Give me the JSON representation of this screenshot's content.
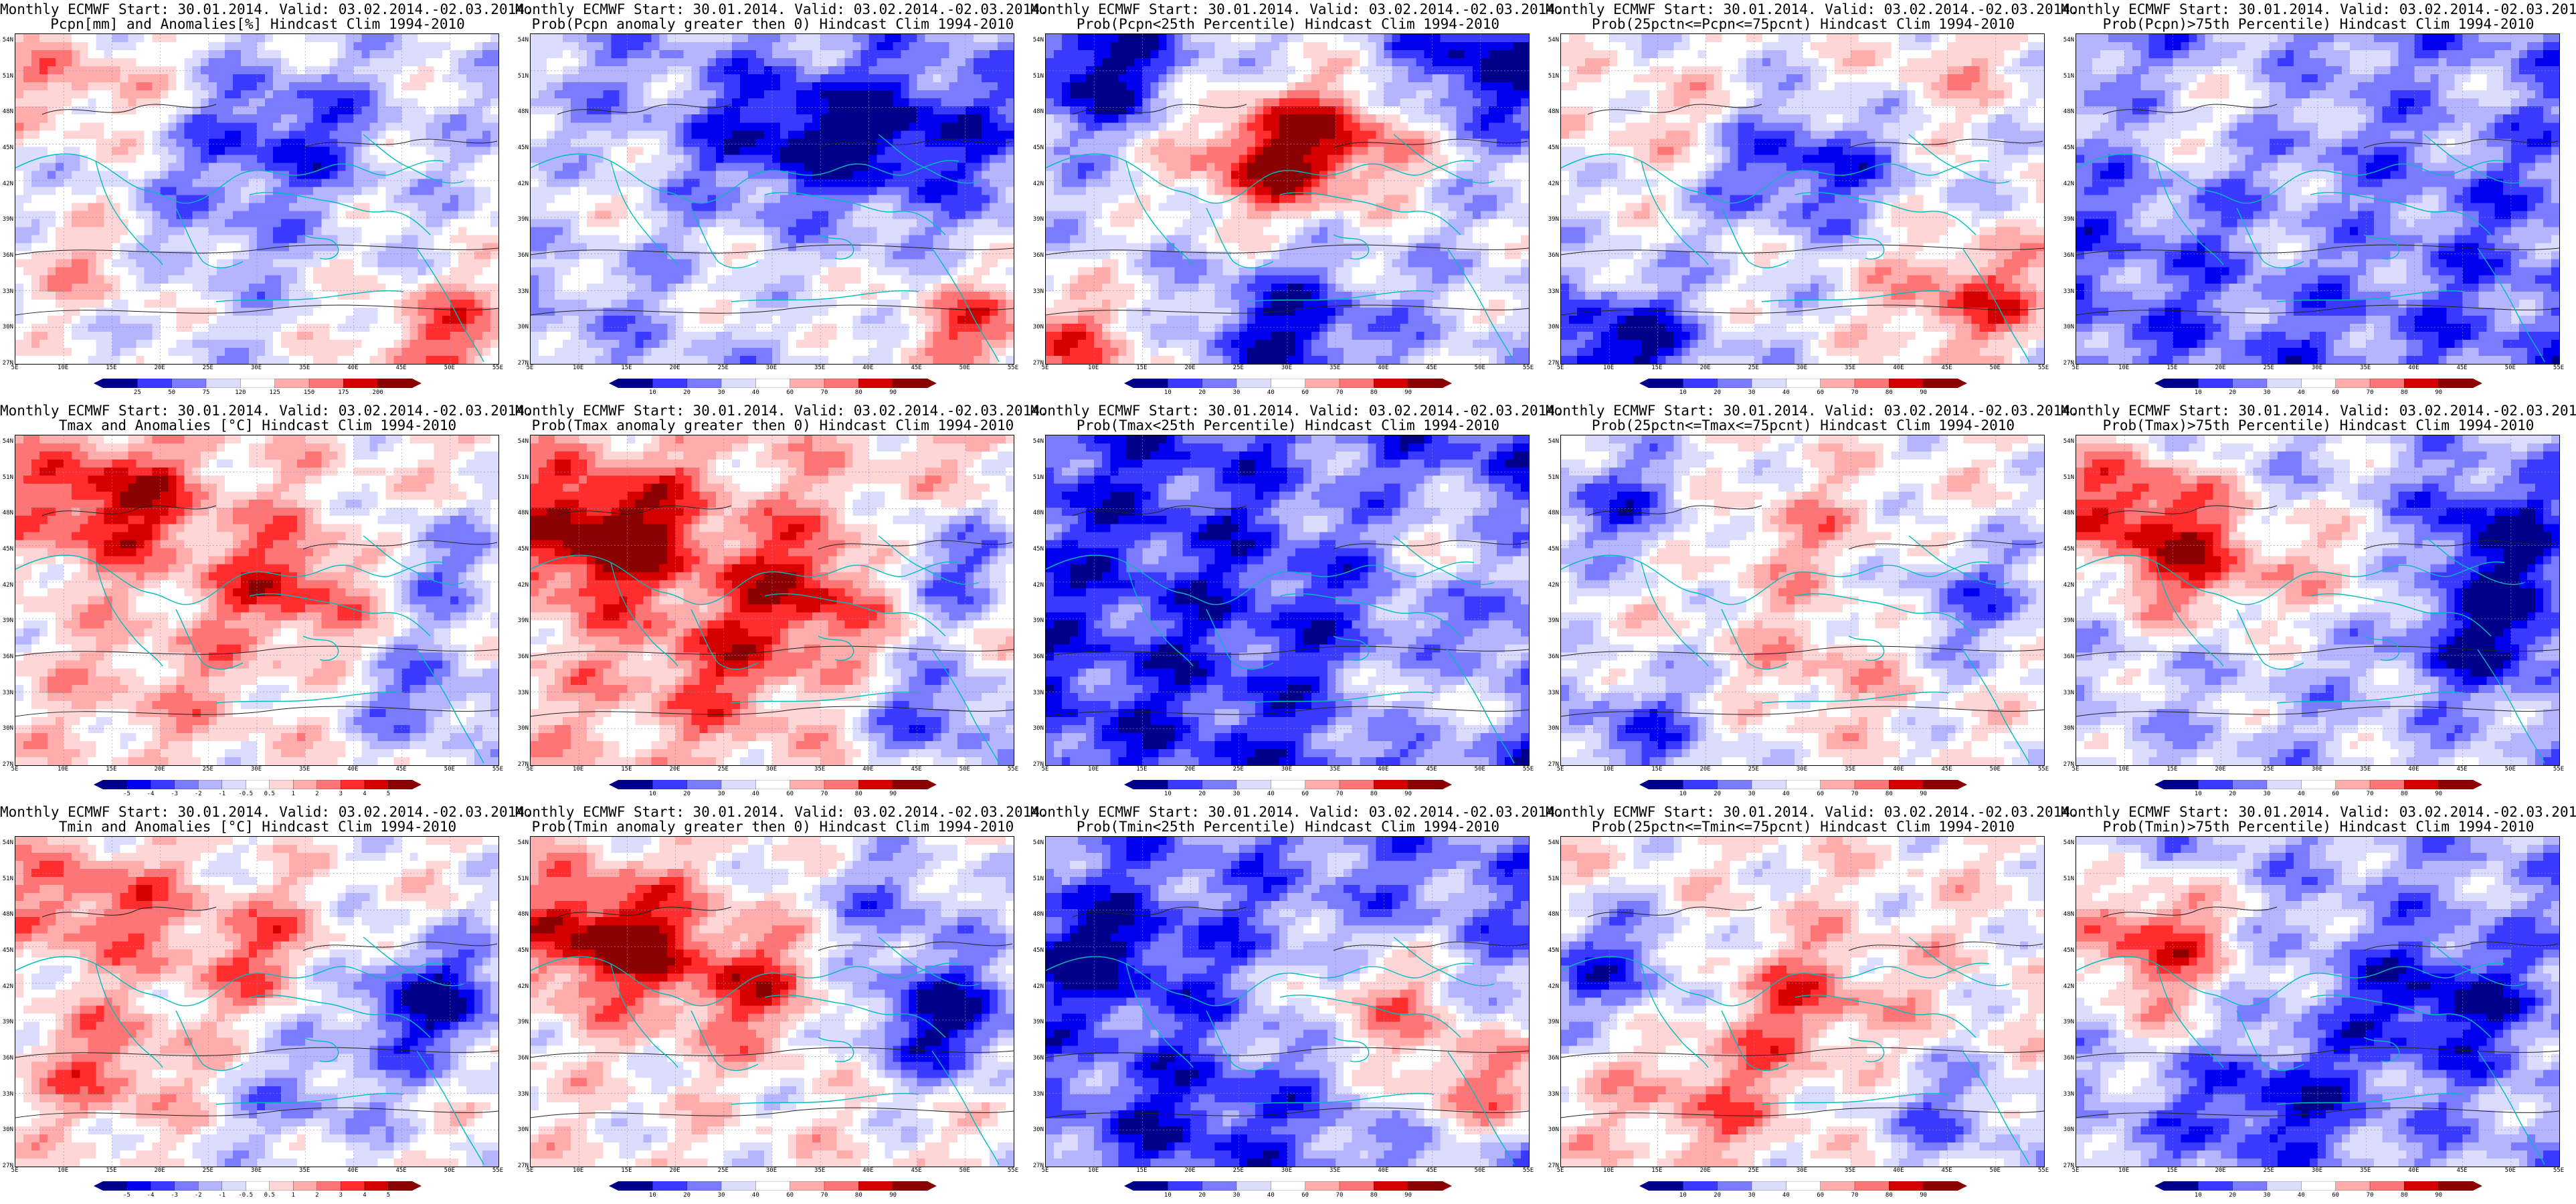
{
  "figure": {
    "colors": {
      "scale": [
        "#00008b",
        "#0000ee",
        "#3a3aff",
        "#7b7bff",
        "#b4b4ff",
        "#dcdcff",
        "#ffffff",
        "#ffd6d6",
        "#ffacac",
        "#ff7575",
        "#ff2d2d",
        "#d40000",
        "#8b0000"
      ],
      "coast": "#00bcbc",
      "contour": "#222222",
      "grid_line": "#8c8cbc"
    },
    "lat_labels": [
      "54N",
      "51N",
      "48N",
      "45N",
      "42N",
      "39N",
      "36N",
      "33N",
      "30N",
      "27N"
    ],
    "lon_labels": [
      "5E",
      "10E",
      "15E",
      "20E",
      "25E",
      "30E",
      "35E",
      "40E",
      "45E",
      "50E",
      "55E"
    ],
    "colorbars": {
      "pcpn": [
        "25",
        "50",
        "75",
        "120",
        "125",
        "150",
        "175",
        "200"
      ],
      "prob": [
        "10",
        "20",
        "30",
        "40",
        "60",
        "70",
        "80",
        "90"
      ],
      "temp": [
        "-5",
        "-4",
        "-3",
        "-2",
        "-1",
        "-0.5",
        "0.5",
        "1",
        "2",
        "3",
        "4",
        "5"
      ]
    },
    "panels": [
      {
        "line1": "Monthly ECMWF Start: 30.01.2014. Valid: 03.02.2014.-02.03.2014.",
        "line2": "Pcpn[mm] and Anomalies[%] Hindcast Clim 1994-2010",
        "cb": "pcpn",
        "pattern": {
          "bias": -0.15,
          "blobs": [
            [
              0.12,
              0.15,
              0.5
            ],
            [
              0.9,
              0.92,
              0.7
            ],
            [
              0.15,
              0.7,
              0.4
            ],
            [
              0.55,
              0.3,
              -0.6
            ],
            [
              0.4,
              0.6,
              -0.3
            ]
          ]
        }
      },
      {
        "line1": "Monthly ECMWF Start: 30.01.2014. Valid: 03.02.2014.-02.03.2014.",
        "line2": "Prob(Pcpn anomaly greater then 0) Hindcast Clim 1994-2010",
        "cb": "prob",
        "pattern": {
          "bias": -0.35,
          "blobs": [
            [
              0.92,
              0.9,
              0.9
            ],
            [
              0.1,
              0.5,
              0.3
            ],
            [
              0.5,
              0.8,
              0.3
            ],
            [
              0.55,
              0.3,
              -0.6
            ],
            [
              0.8,
              0.3,
              -0.5
            ]
          ]
        }
      },
      {
        "line1": "Monthly ECMWF Start: 30.01.2014. Valid: 03.02.2014.-02.03.2014.",
        "line2": "Prob(Pcpn<25th Percentile) Hindcast Clim 1994-2010",
        "cb": "prob",
        "pattern": {
          "bias": -0.2,
          "blobs": [
            [
              0.45,
              0.38,
              0.9
            ],
            [
              0.62,
              0.3,
              0.7
            ],
            [
              0.05,
              0.95,
              0.7
            ],
            [
              0.1,
              0.1,
              -0.8
            ],
            [
              0.9,
              0.1,
              -0.8
            ],
            [
              0.5,
              0.9,
              -0.7
            ]
          ]
        }
      },
      {
        "line1": "Monthly ECMWF Start: 30.01.2014. Valid: 03.02.2014.-02.03.2014.",
        "line2": "Prob(25pctn<=Pcpn<=75pcnt) Hindcast Clim 1994-2010",
        "cb": "prob",
        "pattern": {
          "bias": -0.1,
          "blobs": [
            [
              0.5,
              0.4,
              -0.7
            ],
            [
              0.1,
              0.95,
              -0.9
            ],
            [
              0.85,
              0.8,
              0.7
            ],
            [
              0.2,
              0.25,
              0.3
            ],
            [
              0.8,
              0.1,
              0.3
            ]
          ]
        }
      },
      {
        "line1": "Monthly ECMWF Start: 30.01.2014. Valid: 03.02.2014.-02.03.2014.",
        "line2": "Prob(Pcpn)>75th Percentile) Hindcast Clim 1994-2010",
        "cb": "prob",
        "pattern": {
          "bias": -0.55,
          "blobs": [
            [
              0.2,
              0.3,
              0.3
            ],
            [
              0.35,
              0.15,
              0.3
            ],
            [
              0.8,
              0.2,
              0.2
            ],
            [
              0.5,
              0.6,
              0.2
            ]
          ]
        }
      },
      {
        "line1": "Monthly ECMWF Start: 30.01.2014. Valid: 03.02.2014.-02.03.2014.",
        "line2": "Tmax and Anomalies [°C] Hindcast Clim 1994-2010",
        "cb": "temp",
        "pattern": {
          "bias": 0.1,
          "blobs": [
            [
              0.2,
              0.2,
              0.8
            ],
            [
              0.6,
              0.45,
              0.7
            ],
            [
              0.85,
              0.4,
              -0.6
            ],
            [
              0.85,
              0.8,
              -0.6
            ],
            [
              0.3,
              0.75,
              0.2
            ]
          ]
        }
      },
      {
        "line1": "Monthly ECMWF Start: 30.01.2014. Valid: 03.02.2014.-02.03.2014.",
        "line2": "Prob(Tmax anomaly greater then 0) Hindcast Clim 1994-2010",
        "cb": "prob",
        "pattern": {
          "bias": 0.2,
          "blobs": [
            [
              0.15,
              0.3,
              1.0
            ],
            [
              0.6,
              0.45,
              0.7
            ],
            [
              0.85,
              0.4,
              -0.8
            ],
            [
              0.85,
              0.85,
              -0.8
            ],
            [
              0.4,
              0.7,
              0.4
            ]
          ]
        }
      },
      {
        "line1": "Monthly ECMWF Start: 30.01.2014. Valid: 03.02.2014.-02.03.2014.",
        "line2": "Prob(Tmax<25th Percentile) Hindcast Clim 1994-2010",
        "cb": "prob",
        "pattern": {
          "bias": -0.7,
          "blobs": [
            [
              0.85,
              0.35,
              0.6
            ],
            [
              0.8,
              0.8,
              0.6
            ],
            [
              0.6,
              0.15,
              0.2
            ]
          ]
        }
      },
      {
        "line1": "Monthly ECMWF Start: 30.01.2014. Valid: 03.02.2014.-02.03.2014.",
        "line2": "Prob(25pctn<=Tmax<=75pcnt) Hindcast Clim 1994-2010",
        "cb": "prob",
        "pattern": {
          "bias": 0,
          "blobs": [
            [
              0.1,
              0.2,
              -0.6
            ],
            [
              0.15,
              0.9,
              -0.6
            ],
            [
              0.5,
              0.3,
              0.3
            ],
            [
              0.55,
              0.7,
              0.3
            ],
            [
              0.85,
              0.5,
              -0.5
            ]
          ]
        }
      },
      {
        "line1": "Monthly ECMWF Start: 30.01.2014. Valid: 03.02.2014.-02.03.2014.",
        "line2": "Prob(Tmax)>75th Percentile) Hindcast Clim 1994-2010",
        "cb": "prob",
        "pattern": {
          "bias": -0.25,
          "blobs": [
            [
              0.1,
              0.2,
              0.9
            ],
            [
              0.25,
              0.4,
              0.8
            ],
            [
              0.6,
              0.4,
              0.4
            ],
            [
              0.85,
              0.6,
              -0.7
            ],
            [
              0.85,
              0.3,
              -0.7
            ]
          ]
        }
      },
      {
        "line1": "Monthly ECMWF Start: 30.01.2014. Valid: 03.02.2014.-02.03.2014.",
        "line2": "Tmin and Anomalies [°C] Hindcast Clim 1994-2010",
        "cb": "temp",
        "pattern": {
          "bias": 0,
          "blobs": [
            [
              0.15,
              0.2,
              0.6
            ],
            [
              0.5,
              0.35,
              0.5
            ],
            [
              0.85,
              0.5,
              -0.9
            ],
            [
              0.2,
              0.7,
              0.5
            ],
            [
              0.6,
              0.8,
              -0.4
            ]
          ]
        }
      },
      {
        "line1": "Monthly ECMWF Start: 30.01.2014. Valid: 03.02.2014.-02.03.2014.",
        "line2": "Prob(Tmin anomaly greater then 0) Hindcast Clim 1994-2010",
        "cb": "prob",
        "pattern": {
          "bias": 0.05,
          "blobs": [
            [
              0.15,
              0.3,
              1.0
            ],
            [
              0.45,
              0.45,
              0.6
            ],
            [
              0.85,
              0.55,
              -1.0
            ],
            [
              0.75,
              0.2,
              -0.5
            ]
          ]
        }
      },
      {
        "line1": "Monthly ECMWF Start: 30.01.2014. Valid: 03.02.2014.-02.03.2014.",
        "line2": "Prob(Tmin<25th Percentile) Hindcast Clim 1994-2010",
        "cb": "prob",
        "pattern": {
          "bias": -0.5,
          "blobs": [
            [
              0.7,
              0.5,
              0.8
            ],
            [
              0.9,
              0.75,
              0.9
            ],
            [
              0.3,
              0.85,
              -0.3
            ],
            [
              0.1,
              0.35,
              -0.5
            ]
          ]
        }
      },
      {
        "line1": "Monthly ECMWF Start: 30.01.2014. Valid: 03.02.2014.-02.03.2014.",
        "line2": "Prob(25pctn<=Tmin<=75pcnt) Hindcast Clim 1994-2010",
        "cb": "prob",
        "pattern": {
          "bias": 0.05,
          "blobs": [
            [
              0.1,
              0.4,
              -0.7
            ],
            [
              0.5,
              0.5,
              0.5
            ],
            [
              0.8,
              0.85,
              -0.5
            ],
            [
              0.3,
              0.8,
              0.4
            ]
          ]
        }
      },
      {
        "line1": "Monthly ECMWF Start: 30.01.2014. Valid: 03.02.2014.-02.03.2014.",
        "line2": "Prob(Tmin)>75th Percentile) Hindcast Clim 1994-2010",
        "cb": "prob",
        "pattern": {
          "bias": -0.35,
          "blobs": [
            [
              0.15,
              0.3,
              1.0
            ],
            [
              0.2,
              0.55,
              0.3
            ],
            [
              0.75,
              0.5,
              -0.6
            ],
            [
              0.4,
              0.8,
              -0.5
            ]
          ]
        }
      }
    ]
  }
}
